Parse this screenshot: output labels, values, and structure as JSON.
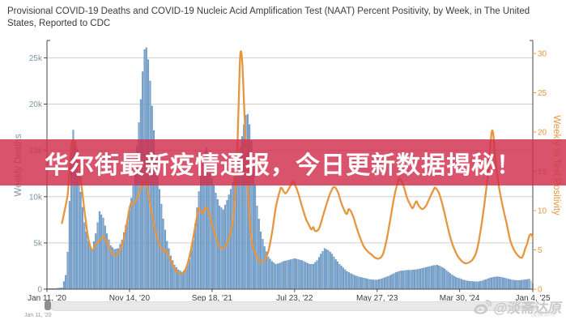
{
  "title": "Provisional COVID-19 Deaths and COVID-19 Nucleic Acid Amplification Test (NAAT) Percent Positivity, by Week, in The United States, Reported to CDC",
  "banner": {
    "text": "华尔街最新疫情通报，今日更新数据揭秘！",
    "bg_color": "rgba(208,48,77,0.83)",
    "text_color": "#ffffff"
  },
  "watermark": {
    "icon": "weibo-icon",
    "text": "@淡斋达原",
    "signature": "淡斋达原"
  },
  "slider": {
    "start_label": "Jan 11, '20"
  },
  "chart_data": {
    "type": "bar+line",
    "title": "Provisional COVID-19 Deaths and COVID-19 NAAT Percent Positivity, by Week, Reported to CDC",
    "grid": "horizontal",
    "colors": {
      "bar_fill": "#7BA7D1",
      "bar_stroke": "#4C7CAD",
      "incomplete_bar_fill": "#C9CFD6",
      "incomplete_bar_stroke": "#AEB6BE",
      "line": "#E8953F",
      "grid_line": "#cfcfcf",
      "axis_line": "#4a4a4a",
      "left_label": "#7D96A8",
      "x_label": "#3c3c3c"
    },
    "x_axis": {
      "range_weeks": [
        0,
        259
      ],
      "tick_weeks": [
        0,
        44,
        88,
        132,
        176,
        220,
        259
      ],
      "tick_labels": [
        "Jan 11, '20",
        "Nov 14, '20",
        "Sep 18, '21",
        "Jul 23, '22",
        "May 27, '23",
        "Mar 30, '24",
        "Jan 4, '25"
      ]
    },
    "left_axis": {
      "title": "Weekly Deaths",
      "tick_values": [
        0,
        5000,
        10000,
        15000,
        20000,
        25000
      ],
      "tick_labels": [
        "0",
        "5k",
        "10k",
        "15k",
        "20k",
        "25k"
      ],
      "max": 25000
    },
    "right_axis": {
      "title": "Weekly % Test Positivity",
      "tick_values": [
        0,
        5,
        10,
        15,
        20,
        25,
        30
      ],
      "tick_labels": [
        "0",
        "5",
        "10",
        "15",
        "20",
        "25",
        "30"
      ],
      "max": 30
    },
    "series": [
      {
        "name": "Weekly Deaths",
        "type": "bar",
        "axis": "left",
        "incomplete_from_week": 258,
        "points": [
          [
            0,
            60
          ],
          [
            4,
            60
          ],
          [
            8,
            150
          ],
          [
            10,
            1500
          ],
          [
            11,
            4000
          ],
          [
            12,
            9500
          ],
          [
            13,
            15000
          ],
          [
            14,
            17200
          ],
          [
            15,
            16000
          ],
          [
            16,
            14200
          ],
          [
            18,
            10500
          ],
          [
            20,
            7200
          ],
          [
            22,
            5200
          ],
          [
            24,
            4300
          ],
          [
            26,
            6000
          ],
          [
            28,
            8400
          ],
          [
            30,
            7700
          ],
          [
            32,
            6000
          ],
          [
            34,
            4700
          ],
          [
            36,
            4300
          ],
          [
            38,
            4400
          ],
          [
            40,
            5300
          ],
          [
            42,
            6900
          ],
          [
            44,
            8500
          ],
          [
            46,
            11200
          ],
          [
            48,
            15500
          ],
          [
            50,
            20500
          ],
          [
            51,
            23500
          ],
          [
            52,
            25900
          ],
          [
            53,
            26100
          ],
          [
            54,
            24800
          ],
          [
            55,
            22500
          ],
          [
            56,
            19800
          ],
          [
            58,
            14500
          ],
          [
            60,
            10800
          ],
          [
            62,
            7600
          ],
          [
            64,
            5200
          ],
          [
            66,
            3600
          ],
          [
            68,
            2600
          ],
          [
            70,
            2100
          ],
          [
            72,
            1850
          ],
          [
            74,
            2100
          ],
          [
            76,
            3200
          ],
          [
            78,
            5300
          ],
          [
            80,
            8800
          ],
          [
            82,
            12300
          ],
          [
            84,
            14900
          ],
          [
            85,
            15300
          ],
          [
            86,
            14000
          ],
          [
            88,
            12000
          ],
          [
            90,
            10400
          ],
          [
            92,
            9000
          ],
          [
            94,
            8600
          ],
          [
            96,
            9600
          ],
          [
            98,
            10800
          ],
          [
            100,
            12200
          ],
          [
            102,
            14200
          ],
          [
            104,
            16500
          ],
          [
            105,
            17800
          ],
          [
            106,
            18800
          ],
          [
            107,
            18900
          ],
          [
            108,
            17800
          ],
          [
            109,
            16000
          ],
          [
            110,
            13500
          ],
          [
            112,
            9000
          ],
          [
            114,
            6200
          ],
          [
            116,
            4600
          ],
          [
            118,
            3500
          ],
          [
            120,
            3000
          ],
          [
            122,
            2700
          ],
          [
            124,
            2800
          ],
          [
            126,
            3000
          ],
          [
            128,
            3100
          ],
          [
            130,
            3200
          ],
          [
            132,
            3300
          ],
          [
            134,
            3200
          ],
          [
            136,
            3100
          ],
          [
            138,
            2900
          ],
          [
            140,
            2700
          ],
          [
            142,
            2700
          ],
          [
            144,
            3100
          ],
          [
            146,
            3800
          ],
          [
            148,
            4400
          ],
          [
            150,
            4200
          ],
          [
            152,
            3800
          ],
          [
            154,
            3200
          ],
          [
            156,
            2700
          ],
          [
            158,
            2300
          ],
          [
            160,
            1900
          ],
          [
            162,
            1700
          ],
          [
            164,
            1500
          ],
          [
            166,
            1350
          ],
          [
            168,
            1250
          ],
          [
            170,
            1150
          ],
          [
            172,
            1050
          ],
          [
            174,
            1000
          ],
          [
            176,
            1000
          ],
          [
            178,
            1100
          ],
          [
            180,
            1250
          ],
          [
            182,
            1400
          ],
          [
            184,
            1600
          ],
          [
            186,
            1800
          ],
          [
            188,
            1950
          ],
          [
            190,
            2000
          ],
          [
            192,
            2050
          ],
          [
            194,
            2050
          ],
          [
            196,
            2100
          ],
          [
            198,
            2150
          ],
          [
            200,
            2250
          ],
          [
            202,
            2350
          ],
          [
            204,
            2450
          ],
          [
            206,
            2550
          ],
          [
            208,
            2600
          ],
          [
            210,
            2450
          ],
          [
            212,
            2200
          ],
          [
            214,
            1850
          ],
          [
            216,
            1550
          ],
          [
            218,
            1300
          ],
          [
            220,
            1150
          ],
          [
            222,
            1000
          ],
          [
            224,
            900
          ],
          [
            226,
            850
          ],
          [
            228,
            820
          ],
          [
            230,
            800
          ],
          [
            232,
            900
          ],
          [
            234,
            1050
          ],
          [
            236,
            1200
          ],
          [
            238,
            1300
          ],
          [
            240,
            1350
          ],
          [
            242,
            1300
          ],
          [
            244,
            1200
          ],
          [
            246,
            1100
          ],
          [
            248,
            1000
          ],
          [
            250,
            950
          ],
          [
            252,
            950
          ],
          [
            254,
            1000
          ],
          [
            256,
            1050
          ],
          [
            257,
            1100
          ],
          [
            258,
            900
          ],
          [
            259,
            600
          ]
        ]
      },
      {
        "name": "Weekly % Test Positivity",
        "type": "line",
        "axis": "right",
        "points": [
          [
            8,
            8.4
          ],
          [
            9,
            9.5
          ],
          [
            11,
            12.0
          ],
          [
            12,
            15.0
          ],
          [
            13,
            18.0
          ],
          [
            14,
            19.0
          ],
          [
            16,
            17.5
          ],
          [
            18,
            14.0
          ],
          [
            20,
            10.0
          ],
          [
            22,
            6.5
          ],
          [
            24,
            5.0
          ],
          [
            26,
            5.6
          ],
          [
            28,
            6.2
          ],
          [
            30,
            6.7
          ],
          [
            32,
            6.0
          ],
          [
            34,
            4.8
          ],
          [
            36,
            4.3
          ],
          [
            38,
            4.6
          ],
          [
            40,
            5.6
          ],
          [
            42,
            7.6
          ],
          [
            44,
            10.3
          ],
          [
            45,
            11.0
          ],
          [
            46,
            10.8
          ],
          [
            48,
            11.5
          ],
          [
            50,
            12.8
          ],
          [
            52,
            13.8
          ],
          [
            54,
            12.2
          ],
          [
            56,
            9.5
          ],
          [
            58,
            7.2
          ],
          [
            60,
            5.6
          ],
          [
            62,
            4.8
          ],
          [
            63,
            5.0
          ],
          [
            64,
            4.7
          ],
          [
            66,
            3.6
          ],
          [
            68,
            2.6
          ],
          [
            70,
            2.1
          ],
          [
            72,
            2.0
          ],
          [
            74,
            2.6
          ],
          [
            76,
            4.2
          ],
          [
            78,
            6.6
          ],
          [
            80,
            9.3
          ],
          [
            81,
            10.3
          ],
          [
            83,
            9.7
          ],
          [
            85,
            10.4
          ],
          [
            87,
            9.2
          ],
          [
            89,
            7.4
          ],
          [
            91,
            5.9
          ],
          [
            93,
            5.2
          ],
          [
            95,
            5.4
          ],
          [
            97,
            6.5
          ],
          [
            99,
            8.5
          ],
          [
            101,
            15.0
          ],
          [
            102,
            22.0
          ],
          [
            103,
            29.6
          ],
          [
            104,
            29.3
          ],
          [
            105,
            24.0
          ],
          [
            107,
            13.0
          ],
          [
            109,
            6.5
          ],
          [
            111,
            4.6
          ],
          [
            113,
            3.6
          ],
          [
            114,
            3.4
          ],
          [
            116,
            3.7
          ],
          [
            118,
            4.8
          ],
          [
            120,
            7.2
          ],
          [
            122,
            10.4
          ],
          [
            124,
            12.4
          ],
          [
            125,
            12.9
          ],
          [
            127,
            12.2
          ],
          [
            129,
            12.8
          ],
          [
            131,
            13.7
          ],
          [
            132,
            13.4
          ],
          [
            134,
            12.2
          ],
          [
            136,
            10.5
          ],
          [
            138,
            9.0
          ],
          [
            140,
            8.0
          ],
          [
            141,
            7.6
          ],
          [
            142,
            7.9
          ],
          [
            143,
            7.4
          ],
          [
            145,
            7.7
          ],
          [
            147,
            9.2
          ],
          [
            149,
            10.8
          ],
          [
            151,
            12.2
          ],
          [
            153,
            13.0
          ],
          [
            155,
            12.4
          ],
          [
            157,
            10.9
          ],
          [
            159,
            9.8
          ],
          [
            160,
            9.6
          ],
          [
            161,
            10.2
          ],
          [
            163,
            9.4
          ],
          [
            165,
            7.9
          ],
          [
            167,
            6.5
          ],
          [
            169,
            5.4
          ],
          [
            171,
            4.8
          ],
          [
            173,
            4.4
          ],
          [
            175,
            4.0
          ],
          [
            177,
            3.9
          ],
          [
            179,
            4.4
          ],
          [
            181,
            6.2
          ],
          [
            183,
            8.8
          ],
          [
            185,
            11.6
          ],
          [
            187,
            13.6
          ],
          [
            188,
            14.1
          ],
          [
            190,
            13.2
          ],
          [
            192,
            11.6
          ],
          [
            194,
            10.6
          ],
          [
            195,
            10.3
          ],
          [
            196,
            10.8
          ],
          [
            197,
            11.2
          ],
          [
            198,
            10.7
          ],
          [
            200,
            10.2
          ],
          [
            202,
            10.6
          ],
          [
            204,
            11.6
          ],
          [
            206,
            12.6
          ],
          [
            207,
            12.9
          ],
          [
            209,
            12.2
          ],
          [
            211,
            10.6
          ],
          [
            213,
            8.6
          ],
          [
            215,
            6.6
          ],
          [
            217,
            5.2
          ],
          [
            219,
            4.2
          ],
          [
            221,
            3.6
          ],
          [
            223,
            3.3
          ],
          [
            225,
            3.4
          ],
          [
            227,
            3.8
          ],
          [
            229,
            4.8
          ],
          [
            231,
            7.2
          ],
          [
            233,
            10.5
          ],
          [
            235,
            14.5
          ],
          [
            237,
            19.8
          ],
          [
            238,
            19.5
          ],
          [
            239,
            16.5
          ],
          [
            241,
            13.0
          ],
          [
            243,
            10.5
          ],
          [
            245,
            8.4
          ],
          [
            247,
            6.2
          ],
          [
            249,
            5.0
          ],
          [
            251,
            4.3
          ],
          [
            253,
            4.0
          ],
          [
            254,
            4.4
          ],
          [
            255,
            5.2
          ],
          [
            256,
            5.8
          ],
          [
            257,
            6.7
          ],
          [
            258,
            7.0
          ],
          [
            259,
            6.6
          ]
        ]
      }
    ]
  }
}
